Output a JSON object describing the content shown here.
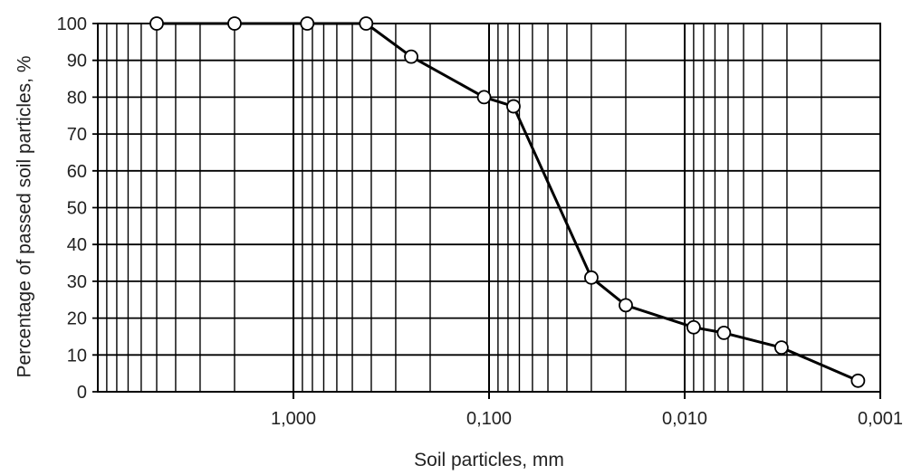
{
  "chart_data": {
    "type": "line",
    "title": "",
    "xlabel": "Soil particles, mm",
    "ylabel": "Percentage of passed soil particles, %",
    "x_scale": "log",
    "x_reversed": true,
    "xlim": [
      10,
      0.001
    ],
    "ylim": [
      0,
      100
    ],
    "grid": true,
    "x_ticks": [
      {
        "value": 1,
        "label": "1,000"
      },
      {
        "value": 0.1,
        "label": "0,100"
      },
      {
        "value": 0.01,
        "label": "0,010"
      },
      {
        "value": 0.001,
        "label": "0,001"
      }
    ],
    "y_ticks": [
      0,
      10,
      20,
      30,
      40,
      50,
      60,
      70,
      80,
      90,
      100
    ],
    "series": [
      {
        "points": [
          {
            "x": 5,
            "y": 100
          },
          {
            "x": 2,
            "y": 100
          },
          {
            "x": 0.85,
            "y": 100
          },
          {
            "x": 0.425,
            "y": 100
          },
          {
            "x": 0.25,
            "y": 91
          },
          {
            "x": 0.106,
            "y": 80
          },
          {
            "x": 0.075,
            "y": 77.5
          },
          {
            "x": 0.03,
            "y": 31
          },
          {
            "x": 0.02,
            "y": 23.5
          },
          {
            "x": 0.009,
            "y": 17.5
          },
          {
            "x": 0.0063,
            "y": 16
          },
          {
            "x": 0.0032,
            "y": 12
          },
          {
            "x": 0.0013,
            "y": 3
          }
        ]
      }
    ],
    "colors": {
      "line": "#000000",
      "marker_fill": "#ffffff",
      "grid": "#000000"
    }
  }
}
